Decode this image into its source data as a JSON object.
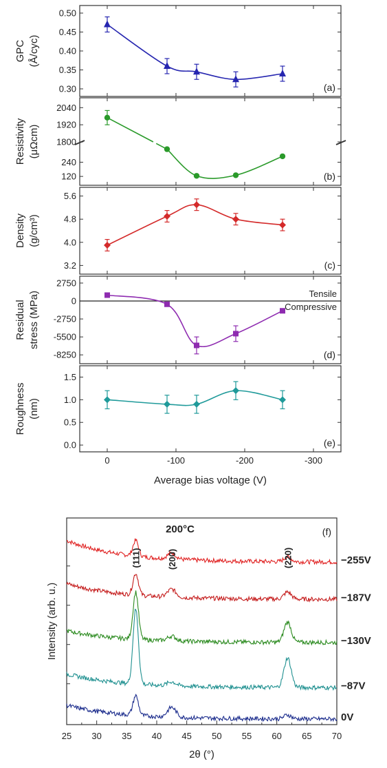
{
  "chart_data": [
    {
      "type": "line",
      "panel": "(a)",
      "ylabel_lines": [
        "GPC",
        "(Å/cyc)"
      ],
      "x": [
        0,
        -87,
        -130,
        -187,
        -255
      ],
      "values": [
        0.47,
        0.36,
        0.345,
        0.325,
        0.34
      ],
      "errors": [
        0.02,
        0.02,
        0.02,
        0.02,
        0.02
      ],
      "yticks": [
        0.3,
        0.35,
        0.4,
        0.45,
        0.5
      ],
      "ytick_labels": [
        "0.30",
        "0.35",
        "0.40",
        "0.45",
        "0.50"
      ],
      "ylim": [
        0.28,
        0.52
      ],
      "color": "#2626b0",
      "marker": "triangle"
    },
    {
      "type": "line",
      "panel": "(b)",
      "ylabel_lines": [
        "Resistivity",
        "(μΩcm)"
      ],
      "x": [
        0,
        -87,
        -130,
        -187,
        -255
      ],
      "values": [
        1970,
        350,
        125,
        130,
        290
      ],
      "errors": [
        50,
        0,
        0,
        0,
        0
      ],
      "axis_break_between": [
        400,
        1800
      ],
      "yticks": [
        120,
        240,
        1800,
        1920,
        2040
      ],
      "ytick_labels": [
        "120",
        "240",
        "1800",
        "1920",
        "2040"
      ],
      "color": "#2a9a2a",
      "marker": "circle"
    },
    {
      "type": "line",
      "panel": "(c)",
      "ylabel_lines": [
        "Density",
        "(g/cm³)"
      ],
      "x": [
        0,
        -87,
        -130,
        -187,
        -255
      ],
      "values": [
        3.9,
        4.9,
        5.3,
        4.8,
        4.6
      ],
      "errors": [
        0.2,
        0.2,
        0.2,
        0.2,
        0.2
      ],
      "yticks": [
        3.2,
        4.0,
        4.8,
        5.6
      ],
      "ytick_labels": [
        "3.2",
        "4.0",
        "4.8",
        "5.6"
      ],
      "ylim": [
        2.9,
        5.9
      ],
      "color": "#d42a2a",
      "marker": "diamond"
    },
    {
      "type": "line",
      "panel": "(d)",
      "ylabel_lines": [
        "Residual",
        "stress (MPa)"
      ],
      "x": [
        0,
        -87,
        -130,
        -187,
        -255
      ],
      "values": [
        900,
        -500,
        -6800,
        -5000,
        -1500
      ],
      "errors": [
        0,
        0,
        1300,
        1200,
        0
      ],
      "yticks": [
        -8250,
        -5500,
        -2750,
        0,
        2750
      ],
      "ytick_labels": [
        "-8250",
        "-5500",
        "-2750",
        "0",
        "2750"
      ],
      "ylim": [
        -9600,
        3800
      ],
      "zero_line": true,
      "annotations": [
        "Tensile",
        "Compressive"
      ],
      "color": "#8e2bb0",
      "marker": "square"
    },
    {
      "type": "line",
      "panel": "(e)",
      "ylabel_lines": [
        "Roughness",
        "(nm)"
      ],
      "x": [
        0,
        -87,
        -130,
        -187,
        -255
      ],
      "values": [
        1.0,
        0.9,
        0.9,
        1.2,
        1.0
      ],
      "errors": [
        0.2,
        0.2,
        0.2,
        0.2,
        0.2
      ],
      "yticks": [
        0.0,
        0.5,
        1.0,
        1.5
      ],
      "ytick_labels": [
        "0.0",
        "0.5",
        "1.0",
        "1.5"
      ],
      "ylim": [
        -0.15,
        1.75
      ],
      "color": "#1f9a9a",
      "marker": "diamond",
      "xticks": [
        0,
        -100,
        -200,
        -300
      ],
      "xtick_labels": [
        "0",
        "-100",
        "-200",
        "-300"
      ],
      "xlim": [
        40,
        -340
      ],
      "xlabel": "Average bias voltage (V)"
    },
    {
      "type": "line",
      "panel": "(f)",
      "title": "200°C",
      "xlabel": "2θ (°)",
      "ylabel": "Intensity (arb. u.)",
      "xlim": [
        25,
        70
      ],
      "xticks": [
        25,
        30,
        35,
        40,
        45,
        50,
        55,
        60,
        65,
        70
      ],
      "xtick_labels": [
        "25",
        "30",
        "35",
        "40",
        "45",
        "50",
        "55",
        "60",
        "65",
        "70"
      ],
      "peaks": [
        {
          "label": "(111)",
          "pos": 36.5
        },
        {
          "label": "(200)",
          "pos": 42.5
        },
        {
          "label": "(220)",
          "pos": 61.8
        }
      ],
      "series": [
        {
          "name": "−255V",
          "color": "#e02020",
          "offset": 4.0,
          "baseline_start": 0.55,
          "peaks": [
            0.4,
            0.15,
            0.12
          ]
        },
        {
          "name": "−187V",
          "color": "#c41a1a",
          "offset": 3.05,
          "baseline_start": 0.4,
          "peaks": [
            0.55,
            0.2,
            0.18
          ]
        },
        {
          "name": "−130V",
          "color": "#2a8a1e",
          "offset": 1.95,
          "baseline_start": 0.3,
          "peaks": [
            1.2,
            0.12,
            0.52
          ]
        },
        {
          "name": "−87V",
          "color": "#1f9090",
          "offset": 0.8,
          "baseline_start": 0.35,
          "peaks": [
            1.9,
            0.1,
            0.75
          ]
        },
        {
          "name": "0V",
          "color": "#1a2b8c",
          "offset": 0.0,
          "baseline_start": 0.35,
          "peaks": [
            0.5,
            0.25,
            0.1
          ]
        }
      ]
    }
  ]
}
